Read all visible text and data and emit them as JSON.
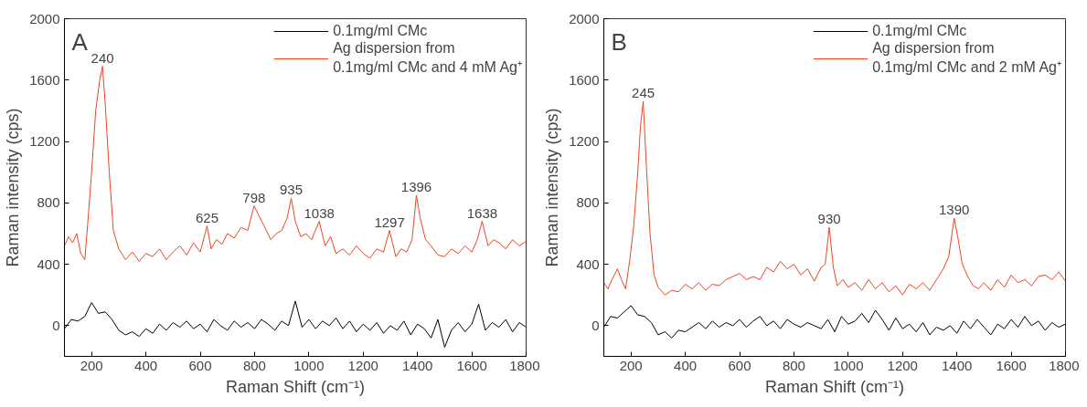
{
  "chart_data": [
    {
      "type": "line",
      "title": "A",
      "xlabel": "Raman Shift (cm⁻¹)",
      "ylabel": "Raman intensity (cps)",
      "xlim": [
        100,
        1800
      ],
      "ylim": [
        -200,
        2000
      ],
      "xticks": [
        200,
        400,
        600,
        800,
        1000,
        1200,
        1400,
        1600,
        1800
      ],
      "yticks": [
        0,
        400,
        800,
        1200,
        1600,
        2000
      ],
      "grid": false,
      "legend": "top right",
      "line_style": "solid",
      "marker": "none",
      "series": [
        {
          "name": "0.1mg/ml CMc",
          "color": "#000000",
          "x": [
            100,
            125,
            150,
            175,
            200,
            225,
            250,
            275,
            300,
            325,
            350,
            375,
            400,
            425,
            450,
            475,
            500,
            525,
            550,
            575,
            600,
            625,
            650,
            675,
            700,
            725,
            750,
            775,
            800,
            825,
            850,
            875,
            900,
            925,
            950,
            975,
            1000,
            1025,
            1050,
            1075,
            1100,
            1125,
            1150,
            1175,
            1200,
            1225,
            1250,
            1275,
            1300,
            1325,
            1350,
            1375,
            1400,
            1425,
            1450,
            1475,
            1500,
            1525,
            1550,
            1575,
            1600,
            1625,
            1650,
            1675,
            1700,
            1725,
            1750,
            1775,
            1800
          ],
          "values": [
            -20,
            40,
            30,
            60,
            150,
            80,
            90,
            40,
            -30,
            -60,
            -40,
            -70,
            -20,
            -50,
            10,
            -30,
            20,
            -10,
            30,
            -20,
            10,
            -40,
            40,
            0,
            -30,
            30,
            -10,
            20,
            -20,
            40,
            10,
            -30,
            30,
            0,
            160,
            -10,
            40,
            -20,
            30,
            0,
            50,
            -20,
            30,
            -40,
            10,
            -30,
            20,
            -50,
            0,
            -30,
            30,
            -60,
            10,
            -20,
            -80,
            40,
            -140,
            -30,
            20,
            -40,
            10,
            140,
            -30,
            20,
            -10,
            40,
            -40,
            20,
            -10
          ]
        },
        {
          "name": "Ag dispersion from\n0.1mg/ml CMc and 4 mM Ag⁺",
          "color": "#ee4422",
          "x": [
            100,
            115,
            130,
            145,
            160,
            175,
            185,
            200,
            215,
            230,
            240,
            250,
            265,
            280,
            300,
            325,
            350,
            375,
            400,
            425,
            450,
            475,
            500,
            525,
            550,
            575,
            600,
            625,
            640,
            660,
            680,
            700,
            725,
            750,
            775,
            798,
            815,
            835,
            860,
            880,
            900,
            920,
            935,
            950,
            970,
            990,
            1010,
            1038,
            1060,
            1080,
            1100,
            1125,
            1150,
            1175,
            1200,
            1225,
            1250,
            1275,
            1297,
            1320,
            1340,
            1360,
            1380,
            1396,
            1410,
            1430,
            1450,
            1475,
            1500,
            1525,
            1550,
            1575,
            1600,
            1620,
            1638,
            1660,
            1680,
            1700,
            1725,
            1750,
            1775,
            1800
          ],
          "values": [
            520,
            580,
            540,
            600,
            470,
            430,
            650,
            1000,
            1400,
            1600,
            1690,
            1450,
            1000,
            620,
            500,
            430,
            480,
            420,
            470,
            450,
            500,
            430,
            480,
            520,
            460,
            540,
            480,
            650,
            500,
            560,
            530,
            600,
            570,
            640,
            620,
            780,
            720,
            650,
            560,
            600,
            620,
            700,
            830,
            680,
            580,
            600,
            560,
            680,
            520,
            580,
            470,
            500,
            460,
            520,
            470,
            440,
            500,
            480,
            620,
            450,
            500,
            480,
            560,
            850,
            700,
            560,
            520,
            460,
            450,
            500,
            470,
            520,
            480,
            560,
            680,
            520,
            560,
            540,
            500,
            560,
            520,
            550
          ]
        }
      ],
      "annotations": [
        {
          "text": "240",
          "x": 240,
          "y": 1690
        },
        {
          "text": "625",
          "x": 625,
          "y": 650
        },
        {
          "text": "798",
          "x": 798,
          "y": 780
        },
        {
          "text": "935",
          "x": 935,
          "y": 830
        },
        {
          "text": "1038",
          "x": 1038,
          "y": 680
        },
        {
          "text": "1297",
          "x": 1297,
          "y": 620
        },
        {
          "text": "1396",
          "x": 1396,
          "y": 850
        },
        {
          "text": "1638",
          "x": 1638,
          "y": 680
        }
      ]
    },
    {
      "type": "line",
      "title": "B",
      "xlabel": "Raman Shift (cm⁻¹)",
      "ylabel": "Raman intensity (cps)",
      "xlim": [
        100,
        1800
      ],
      "ylim": [
        -200,
        2000
      ],
      "xticks": [
        200,
        400,
        600,
        800,
        1000,
        1200,
        1400,
        1600,
        1800
      ],
      "yticks": [
        0,
        400,
        800,
        1200,
        1600,
        2000
      ],
      "grid": false,
      "legend": "top right",
      "line_style": "solid",
      "marker": "none",
      "series": [
        {
          "name": "0.1mg/ml CMc",
          "color": "#000000",
          "x": [
            100,
            125,
            150,
            175,
            200,
            225,
            250,
            275,
            300,
            325,
            350,
            375,
            400,
            425,
            450,
            475,
            500,
            525,
            550,
            575,
            600,
            625,
            650,
            675,
            700,
            725,
            750,
            775,
            800,
            825,
            850,
            875,
            900,
            925,
            950,
            975,
            1000,
            1025,
            1050,
            1075,
            1100,
            1125,
            1150,
            1175,
            1200,
            1225,
            1250,
            1275,
            1300,
            1325,
            1350,
            1375,
            1400,
            1425,
            1450,
            1475,
            1500,
            1525,
            1550,
            1575,
            1600,
            1625,
            1650,
            1675,
            1700,
            1725,
            1750,
            1775,
            1800
          ],
          "values": [
            -10,
            60,
            50,
            90,
            130,
            70,
            60,
            20,
            -60,
            -40,
            -80,
            -30,
            -40,
            -10,
            20,
            -20,
            30,
            -10,
            20,
            0,
            40,
            -10,
            30,
            60,
            0,
            30,
            -20,
            40,
            10,
            -10,
            20,
            0,
            -20,
            40,
            -40,
            60,
            10,
            30,
            80,
            20,
            100,
            40,
            -30,
            50,
            -20,
            10,
            -40,
            20,
            -60,
            -10,
            -30,
            0,
            -50,
            30,
            -20,
            40,
            -10,
            -60,
            10,
            -20,
            40,
            -10,
            60,
            0,
            30,
            -30,
            20,
            -10,
            10
          ]
        },
        {
          "name": "Ag dispersion from\n0.1mg/ml CMc and 2 mM Ag⁺",
          "color": "#ee4422",
          "x": [
            100,
            115,
            130,
            150,
            165,
            180,
            195,
            210,
            225,
            235,
            245,
            255,
            270,
            285,
            300,
            325,
            350,
            375,
            400,
            425,
            450,
            475,
            500,
            525,
            550,
            575,
            600,
            625,
            650,
            675,
            700,
            725,
            750,
            775,
            800,
            825,
            850,
            875,
            900,
            915,
            930,
            945,
            960,
            980,
            1000,
            1025,
            1050,
            1075,
            1100,
            1125,
            1150,
            1175,
            1200,
            1225,
            1250,
            1275,
            1300,
            1325,
            1350,
            1370,
            1390,
            1405,
            1420,
            1440,
            1460,
            1480,
            1500,
            1525,
            1550,
            1575,
            1600,
            1625,
            1650,
            1675,
            1700,
            1725,
            1750,
            1775,
            1800
          ],
          "values": [
            280,
            240,
            300,
            370,
            300,
            240,
            420,
            650,
            1000,
            1300,
            1460,
            1100,
            600,
            330,
            250,
            200,
            230,
            220,
            270,
            240,
            280,
            230,
            270,
            260,
            300,
            320,
            340,
            300,
            320,
            300,
            380,
            350,
            420,
            370,
            400,
            330,
            370,
            290,
            380,
            400,
            640,
            380,
            260,
            300,
            250,
            280,
            230,
            300,
            240,
            280,
            220,
            260,
            200,
            270,
            240,
            280,
            230,
            300,
            370,
            450,
            700,
            560,
            400,
            320,
            260,
            240,
            280,
            230,
            300,
            250,
            330,
            280,
            300,
            260,
            320,
            330,
            300,
            350,
            290
          ]
        }
      ],
      "annotations": [
        {
          "text": "245",
          "x": 245,
          "y": 1460
        },
        {
          "text": "930",
          "x": 930,
          "y": 640
        },
        {
          "text": "1390",
          "x": 1390,
          "y": 700
        }
      ]
    }
  ]
}
